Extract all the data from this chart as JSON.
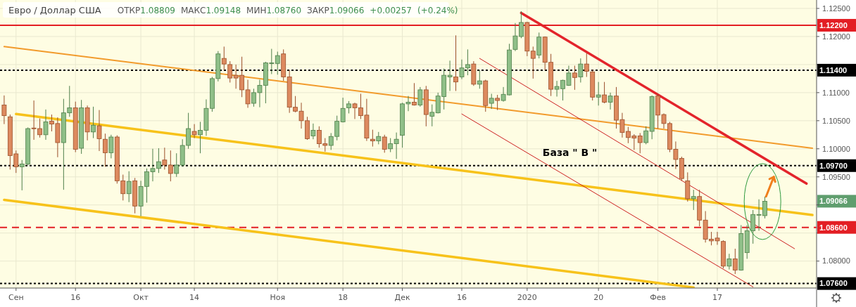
{
  "chart_data": {
    "type": "candlestick",
    "title": "Евро / Доллар США",
    "subtitle": "ОТКР1.08809 МАКС1.09148 МИН1.08760 ЗАКР1.09066 +0.00257 (+0.24%)",
    "categories": [
      null,
      null,
      "Сен",
      null,
      null,
      null,
      null,
      null,
      null,
      null,
      null,
      null,
      "16",
      null,
      null,
      null,
      null,
      null,
      null,
      null,
      null,
      null,
      null,
      "Окт",
      null,
      null,
      null,
      null,
      null,
      null,
      null,
      null,
      "14",
      null,
      null,
      null,
      null,
      null,
      null,
      null,
      null,
      null,
      null,
      null,
      null,
      null,
      "Ноя",
      null,
      null,
      null,
      null,
      null,
      null,
      null,
      null,
      null,
      null,
      "18",
      null,
      null,
      null,
      null,
      null,
      null,
      null,
      null,
      null,
      "Дек",
      null,
      null,
      null,
      null,
      null,
      null,
      null,
      null,
      null,
      "16",
      null,
      null,
      null,
      null,
      null,
      null,
      null,
      null,
      null,
      null,
      "2020",
      null,
      null,
      null,
      null,
      null,
      null,
      null,
      null,
      null,
      null,
      null,
      "20",
      null,
      null,
      null,
      null,
      null,
      null,
      null,
      null,
      null,
      "Фев",
      null,
      null,
      null,
      null,
      null,
      null,
      null,
      null,
      null,
      "17",
      null,
      null,
      null,
      null,
      null,
      null,
      null,
      null,
      null,
      null,
      null,
      null,
      null,
      null,
      null,
      null
    ],
    "colors": [
      "#dd8a5f",
      "#dd8a5f",
      "#dd8a5f",
      "#8fbf88",
      "#8fbf88",
      "#dd8a5f",
      "#dd8a5f",
      "#8fbf88",
      "#dd8a5f",
      "#dd8a5f",
      "#8fbf88",
      "#8fbf88",
      "#dd8a5f",
      "#8fbf88",
      "#dd8a5f",
      "#8fbf88",
      "#dd8a5f",
      "#dd8a5f",
      "#8fbf88",
      "#dd8a5f",
      "#dd8a5f",
      "#8fbf88",
      "#dd8a5f",
      "#8fbf88",
      "#8fbf88",
      "#8fbf88",
      "#8fbf88",
      "#dd8a5f",
      "#dd8a5f",
      "#8fbf88",
      "#8fbf88",
      "#8fbf88",
      "#dd8a5f",
      "#8fbf88",
      "#8fbf88",
      "#8fbf88",
      "#8fbf88",
      "#dd8a5f",
      "#dd8a5f",
      "#dd8a5f",
      "#dd8a5f",
      "#dd8a5f",
      "#8fbf88",
      "#8fbf88",
      "#8fbf88",
      "#8fbf88",
      "#8fbf88",
      "#dd8a5f",
      "#dd8a5f",
      "#dd8a5f",
      "#dd8a5f",
      "#dd8a5f",
      "#8fbf88",
      "#dd8a5f",
      "#dd8a5f",
      "#8fbf88",
      "#8fbf88",
      "#8fbf88",
      "#8fbf88",
      "#dd8a5f",
      "#dd8a5f",
      "#dd8a5f",
      "#dd8a5f",
      "#8fbf88",
      "#dd8a5f",
      "#8fbf88",
      "#8fbf88",
      "#8fbf88",
      "#8fbf88",
      "#dd8a5f",
      "#8fbf88",
      "#dd8a5f",
      "#8fbf88",
      "#8fbf88",
      "#8fbf88",
      "#8fbf88",
      "#dd8a5f",
      "#8fbf88",
      "#8fbf88",
      "#dd8a5f",
      "#8fbf88",
      "#dd8a5f",
      "#8fbf88",
      "#dd8a5f",
      "#8fbf88",
      "#8fbf88",
      "#8fbf88",
      "#8fbf88",
      "#dd8a5f",
      "#dd8a5f",
      "#8fbf88",
      "#dd8a5f",
      "#dd8a5f",
      "#8fbf88",
      "#8fbf88",
      "#8fbf88",
      "#dd8a5f",
      "#8fbf88",
      "#dd8a5f",
      "#dd8a5f",
      "#8fbf88",
      "#dd8a5f",
      "#8fbf88",
      "#dd8a5f",
      "#dd8a5f",
      "#dd8a5f",
      "#dd8a5f",
      "#dd8a5f",
      "#8fbf88",
      "#8fbf88",
      "#dd8a5f",
      "#dd8a5f",
      "#dd8a5f",
      "#dd8a5f",
      "#dd8a5f",
      "#dd8a5f",
      "#8fbf88",
      "#dd8a5f",
      "#dd8a5f",
      "#dd8a5f",
      "#dd8a5f",
      "#dd8a5f",
      "#8fbf88",
      "#dd8a5f",
      "#8fbf88",
      "#8fbf88",
      "#8fbf88",
      "#8fbf88",
      "#8fbf88",
      null,
      null,
      null,
      null,
      null,
      null,
      null,
      null
    ],
    "ohlc": [
      [
        1.1078,
        1.1095,
        1.1044,
        1.1059
      ],
      [
        1.1057,
        1.1061,
        1.0963,
        1.0988
      ],
      [
        1.0991,
        1.0997,
        1.0957,
        1.0968
      ],
      [
        1.0968,
        1.098,
        1.0926,
        1.0973
      ],
      [
        1.0973,
        1.1038,
        1.0971,
        1.1036
      ],
      [
        1.1037,
        1.1086,
        1.1016,
        1.1036
      ],
      [
        1.1036,
        1.1054,
        1.102,
        1.1025
      ],
      [
        1.1025,
        1.107,
        1.1016,
        1.1048
      ],
      [
        1.1049,
        1.1061,
        1.1031,
        1.1044
      ],
      [
        1.1045,
        1.1056,
        1.0985,
        1.1011
      ],
      [
        1.1011,
        1.1089,
        1.0927,
        1.1064
      ],
      [
        1.1064,
        1.1112,
        1.1057,
        1.1073
      ],
      [
        1.1073,
        1.1084,
        1.0994,
        1.0999
      ],
      [
        1.1001,
        1.1087,
        1.0991,
        1.1073
      ],
      [
        1.1073,
        1.1077,
        1.1015,
        1.103
      ],
      [
        1.103,
        1.1075,
        1.1019,
        1.1042
      ],
      [
        1.1041,
        1.1069,
        1.0996,
        1.1018
      ],
      [
        1.1017,
        1.1027,
        1.0968,
        1.0993
      ],
      [
        1.0993,
        1.1025,
        1.0983,
        1.1021
      ],
      [
        1.1021,
        1.1024,
        1.0938,
        1.0943
      ],
      [
        1.0943,
        1.0954,
        1.0908,
        1.092
      ],
      [
        1.092,
        1.096,
        1.0905,
        1.0942
      ],
      [
        1.0943,
        1.0948,
        1.0885,
        1.0898
      ],
      [
        1.0898,
        1.0943,
        1.088,
        1.0933
      ],
      [
        1.0933,
        1.0965,
        1.0904,
        1.0959
      ],
      [
        1.0959,
        1.1,
        1.0942,
        1.0965
      ],
      [
        1.0965,
        1.1001,
        1.0957,
        1.0977
      ],
      [
        1.098,
        1.1002,
        1.0963,
        1.0971
      ],
      [
        1.0971,
        1.0997,
        1.0942,
        1.0956
      ],
      [
        1.0956,
        1.0992,
        1.095,
        1.0971
      ],
      [
        1.0971,
        1.1017,
        1.0968,
        1.1006
      ],
      [
        1.1006,
        1.1064,
        1.1,
        1.1036
      ],
      [
        1.1031,
        1.1044,
        1.1019,
        1.1025
      ],
      [
        1.1025,
        1.1048,
        1.0992,
        1.1033
      ],
      [
        1.1033,
        1.1088,
        1.1023,
        1.1072
      ],
      [
        1.1072,
        1.1128,
        1.1066,
        1.1125
      ],
      [
        1.1125,
        1.1174,
        1.112,
        1.1169
      ],
      [
        1.1161,
        1.1182,
        1.114,
        1.1151
      ],
      [
        1.115,
        1.1156,
        1.1118,
        1.1126
      ],
      [
        1.1131,
        1.115,
        1.1107,
        1.1126
      ],
      [
        1.1131,
        1.1164,
        1.1092,
        1.1105
      ],
      [
        1.1105,
        1.1123,
        1.1073,
        1.108
      ],
      [
        1.1081,
        1.1107,
        1.1075,
        1.11
      ],
      [
        1.11,
        1.1123,
        1.1074,
        1.1113
      ],
      [
        1.1113,
        1.1155,
        1.1081,
        1.1153
      ],
      [
        1.1152,
        1.1178,
        1.1133,
        1.1153
      ],
      [
        1.1152,
        1.1173,
        1.1132,
        1.1166
      ],
      [
        1.1169,
        1.1177,
        1.1121,
        1.1128
      ],
      [
        1.1128,
        1.114,
        1.1064,
        1.1074
      ],
      [
        1.1074,
        1.1094,
        1.1065,
        1.1067
      ],
      [
        1.1067,
        1.1082,
        1.1036,
        1.105
      ],
      [
        1.105,
        1.1057,
        1.1016,
        1.1018
      ],
      [
        1.1023,
        1.1045,
        1.1017,
        1.1033
      ],
      [
        1.1033,
        1.104,
        1.1002,
        1.1009
      ],
      [
        1.1009,
        1.1019,
        1.0995,
        1.1006
      ],
      [
        1.1006,
        1.1028,
        1.0998,
        1.1022
      ],
      [
        1.1022,
        1.1059,
        1.1015,
        1.1049
      ],
      [
        1.1048,
        1.1091,
        1.1047,
        1.1072
      ],
      [
        1.1073,
        1.1085,
        1.1063,
        1.108
      ],
      [
        1.108,
        1.1082,
        1.1053,
        1.1073
      ],
      [
        1.1073,
        1.1098,
        1.1053,
        1.1059
      ],
      [
        1.106,
        1.1089,
        1.1014,
        1.1019
      ],
      [
        1.1017,
        1.1034,
        1.1004,
        1.1014
      ],
      [
        1.1014,
        1.103,
        1.1008,
        1.1022
      ],
      [
        1.1021,
        1.1025,
        1.0993,
        1.0999
      ],
      [
        1.1,
        1.1019,
        1.0994,
        1.1009
      ],
      [
        1.1009,
        1.1029,
        1.0982,
        1.1017
      ],
      [
        1.1024,
        1.1082,
        1.1002,
        1.108
      ],
      [
        1.108,
        1.1094,
        1.1067,
        1.1083
      ],
      [
        1.1083,
        1.1117,
        1.1077,
        1.1078
      ],
      [
        1.1078,
        1.111,
        1.1075,
        1.1105
      ],
      [
        1.1105,
        1.1112,
        1.104,
        1.1061
      ],
      [
        1.1058,
        1.1079,
        1.104,
        1.1065
      ],
      [
        1.1064,
        1.11,
        1.1063,
        1.1094
      ],
      [
        1.1093,
        1.1143,
        1.107,
        1.1131
      ],
      [
        1.1128,
        1.1157,
        1.1103,
        1.1131
      ],
      [
        1.1128,
        1.1202,
        1.1103,
        1.1119
      ],
      [
        1.1128,
        1.1159,
        1.1124,
        1.1144
      ],
      [
        1.1144,
        1.1177,
        1.1131,
        1.115
      ],
      [
        1.1151,
        1.1156,
        1.1112,
        1.1115
      ],
      [
        1.1115,
        1.114,
        1.1107,
        1.1121
      ],
      [
        1.1121,
        1.1123,
        1.1066,
        1.1077
      ],
      [
        1.1081,
        1.1098,
        1.1071,
        1.109
      ],
      [
        1.109,
        1.1096,
        1.1069,
        1.1086
      ],
      [
        1.1086,
        1.111,
        1.1084,
        1.1097
      ],
      [
        1.1096,
        1.1187,
        1.1095,
        1.1176
      ],
      [
        1.1177,
        1.1224,
        1.1174,
        1.1201
      ],
      [
        1.12,
        1.1245,
        1.1197,
        1.1225
      ],
      [
        1.1225,
        1.1226,
        1.1165,
        1.1174
      ],
      [
        1.1174,
        1.1182,
        1.1125,
        1.1161
      ],
      [
        1.1167,
        1.1207,
        1.1161,
        1.1199
      ],
      [
        1.1199,
        1.12,
        1.114,
        1.1154
      ],
      [
        1.1154,
        1.1169,
        1.1094,
        1.1106
      ],
      [
        1.1106,
        1.1121,
        1.1093,
        1.1111
      ],
      [
        1.1107,
        1.1123,
        1.1086,
        1.1122
      ],
      [
        1.1113,
        1.1148,
        1.1112,
        1.1135
      ],
      [
        1.1135,
        1.1148,
        1.1105,
        1.1127
      ],
      [
        1.1128,
        1.1161,
        1.1118,
        1.1151
      ],
      [
        1.1151,
        1.117,
        1.1128,
        1.1138
      ],
      [
        1.1137,
        1.1141,
        1.1086,
        1.1092
      ],
      [
        1.1092,
        1.1119,
        1.1077,
        1.1096
      ],
      [
        1.1096,
        1.1119,
        1.1081,
        1.1083
      ],
      [
        1.1083,
        1.11,
        1.107,
        1.1094
      ],
      [
        1.1094,
        1.111,
        1.1036,
        1.1051
      ],
      [
        1.1052,
        1.1064,
        1.102,
        1.1029
      ],
      [
        1.1031,
        1.1039,
        1.101,
        1.102
      ],
      [
        1.1023,
        1.1026,
        1.0998,
        1.1019
      ],
      [
        1.1023,
        1.1028,
        1.0992,
        1.1011
      ],
      [
        1.1011,
        1.104,
        1.1008,
        1.1032
      ],
      [
        1.1031,
        1.1095,
        1.1017,
        1.1093
      ],
      [
        1.1094,
        1.1098,
        1.1036,
        1.106
      ],
      [
        1.1061,
        1.1063,
        1.1036,
        1.1045
      ],
      [
        1.1045,
        1.1048,
        1.0994,
        1.0999
      ],
      [
        1.0999,
        1.1013,
        1.0964,
        1.0981
      ],
      [
        1.0983,
        1.0986,
        1.0943,
        1.0947
      ],
      [
        1.0943,
        1.0958,
        1.0906,
        1.0911
      ],
      [
        1.0911,
        1.0927,
        1.0891,
        1.0915
      ],
      [
        1.0915,
        1.0927,
        1.0862,
        1.0873
      ],
      [
        1.0873,
        1.0889,
        1.0833,
        1.0839
      ],
      [
        1.0839,
        1.0852,
        1.0828,
        1.0836
      ],
      [
        1.0841,
        1.0852,
        1.0829,
        1.0836
      ],
      [
        1.0835,
        1.0837,
        1.0787,
        1.0791
      ],
      [
        1.0791,
        1.0813,
        1.0785,
        1.0804
      ],
      [
        1.0804,
        1.0822,
        1.0777,
        1.0784
      ],
      [
        1.0784,
        1.0864,
        1.0783,
        1.0849
      ],
      [
        1.0815,
        1.0864,
        1.0804,
        1.0854
      ],
      [
        1.0854,
        1.0891,
        1.0831,
        1.0883
      ],
      [
        1.0882,
        1.091,
        1.0854,
        1.0883
      ],
      [
        1.08809,
        1.09148,
        1.0876,
        1.09066
      ],
      null,
      null,
      null,
      null,
      null,
      null,
      null,
      null
    ],
    "series": [
      {
        "type": "line",
        "color": "#f29b2c",
        "values": [
          1.1182,
          null,
          null,
          null,
          null,
          null,
          null,
          null,
          null,
          null,
          null,
          null,
          null,
          null,
          null,
          null,
          null,
          null,
          null,
          null,
          null,
          null,
          null,
          null,
          null,
          null,
          null,
          null,
          null,
          null,
          null,
          null,
          null,
          null,
          null,
          null,
          null,
          null,
          null,
          null,
          null,
          null,
          null,
          null,
          null,
          null,
          null,
          null,
          null,
          null,
          null,
          null,
          null,
          null,
          null,
          null,
          null,
          null,
          null,
          null,
          null,
          null,
          null,
          null,
          null,
          null,
          null,
          null,
          null,
          null,
          null,
          null,
          null,
          null,
          null,
          null,
          null,
          null,
          null,
          null,
          null,
          null,
          null,
          null,
          null,
          null,
          null,
          null,
          null,
          null,
          null,
          null,
          null,
          null,
          null,
          null,
          null,
          null,
          null,
          null,
          null,
          null,
          null,
          null,
          null,
          null,
          null,
          null,
          null,
          null,
          null,
          null,
          null,
          null,
          null,
          null,
          null,
          null,
          null,
          null,
          null,
          null,
          null,
          null,
          null,
          null,
          null,
          null,
          null,
          null,
          null,
          null,
          null,
          null,
          null,
          null,
          1.1001
        ]
      },
      {
        "type": "line",
        "color": "#f7c21a",
        "values": [
          null,
          null,
          1.1062,
          null,
          null,
          null,
          null,
          null,
          null,
          null,
          null,
          null,
          null,
          null,
          null,
          null,
          null,
          null,
          null,
          null,
          null,
          null,
          null,
          null,
          null,
          null,
          null,
          null,
          null,
          null,
          null,
          null,
          null,
          null,
          null,
          null,
          null,
          null,
          null,
          null,
          null,
          null,
          null,
          null,
          null,
          null,
          null,
          null,
          null,
          null,
          null,
          null,
          null,
          null,
          null,
          null,
          null,
          null,
          null,
          null,
          null,
          null,
          null,
          null,
          null,
          null,
          null,
          null,
          null,
          null,
          null,
          null,
          null,
          null,
          null,
          null,
          null,
          null,
          null,
          null,
          null,
          null,
          null,
          null,
          null,
          null,
          null,
          null,
          null,
          null,
          null,
          null,
          null,
          null,
          null,
          null,
          null,
          null,
          null,
          null,
          null,
          null,
          null,
          null,
          null,
          null,
          null,
          null,
          null,
          null,
          null,
          null,
          null,
          null,
          null,
          null,
          null,
          null,
          null,
          null,
          null,
          null,
          null,
          null,
          null,
          null,
          null,
          null,
          null,
          null,
          null,
          null,
          null,
          null,
          null,
          null,
          1.0882
        ]
      },
      {
        "type": "line",
        "color": "#f7c21a",
        "values": [
          1.0909,
          null,
          null,
          null,
          null,
          null,
          null,
          null,
          null,
          null,
          null,
          null,
          null,
          null,
          null,
          null,
          null,
          null,
          null,
          null,
          null,
          null,
          null,
          null,
          null,
          null,
          null,
          null,
          null,
          null,
          null,
          null,
          null,
          null,
          null,
          null,
          null,
          null,
          null,
          null,
          null,
          null,
          null,
          null,
          null,
          null,
          null,
          null,
          null,
          null,
          null,
          null,
          null,
          null,
          null,
          null,
          null,
          null,
          null,
          null,
          null,
          null,
          null,
          null,
          null,
          null,
          null,
          null,
          null,
          null,
          null,
          null,
          null,
          null,
          null,
          null,
          null,
          null,
          null,
          null,
          null,
          null,
          null,
          null,
          null,
          null,
          null,
          null,
          null,
          null,
          null,
          null,
          null,
          null,
          null,
          null,
          null,
          null,
          null,
          null,
          null,
          null,
          null,
          null,
          null,
          null,
          null,
          null,
          null,
          null,
          null,
          null,
          null,
          null,
          null,
          null,
          1.0753,
          null,
          null,
          null,
          null,
          null,
          null,
          null,
          null,
          null,
          null,
          null,
          null,
          null,
          null,
          null,
          null,
          null,
          null,
          null,
          null
        ]
      },
      {
        "type": "line",
        "color": "#e3242b",
        "values": [
          null,
          null,
          null,
          null,
          null,
          null,
          null,
          null,
          null,
          null,
          null,
          null,
          null,
          null,
          null,
          null,
          null,
          null,
          null,
          null,
          null,
          null,
          null,
          null,
          null,
          null,
          null,
          null,
          null,
          null,
          null,
          null,
          null,
          null,
          null,
          null,
          null,
          null,
          null,
          null,
          null,
          null,
          null,
          null,
          null,
          null,
          null,
          null,
          null,
          null,
          null,
          null,
          null,
          null,
          null,
          null,
          null,
          null,
          null,
          null,
          null,
          null,
          null,
          null,
          null,
          null,
          null,
          null,
          null,
          null,
          null,
          null,
          null,
          null,
          null,
          null,
          null,
          null,
          null,
          null,
          null,
          null,
          null,
          null,
          null,
          null,
          null,
          1.1242,
          null,
          null,
          null,
          null,
          null,
          null,
          null,
          null,
          null,
          null,
          null,
          null,
          null,
          null,
          null,
          null,
          null,
          null,
          null,
          null,
          null,
          null,
          null,
          null,
          null,
          null,
          null,
          null,
          null,
          null,
          null,
          null,
          null,
          null,
          null,
          null,
          null,
          null,
          null,
          null,
          null,
          null,
          null,
          null,
          null,
          null,
          null,
          1.0938,
          null
        ]
      },
      {
        "type": "line",
        "color": "#cc2020",
        "values": [
          null,
          null,
          null,
          null,
          null,
          null,
          null,
          null,
          null,
          null,
          null,
          null,
          null,
          null,
          null,
          null,
          null,
          null,
          null,
          null,
          null,
          null,
          null,
          null,
          null,
          null,
          null,
          null,
          null,
          null,
          null,
          null,
          null,
          null,
          null,
          null,
          null,
          null,
          null,
          null,
          null,
          null,
          null,
          null,
          null,
          null,
          null,
          null,
          null,
          null,
          null,
          null,
          null,
          null,
          null,
          null,
          null,
          null,
          null,
          null,
          null,
          null,
          null,
          null,
          null,
          null,
          null,
          null,
          null,
          null,
          null,
          null,
          null,
          null,
          null,
          null,
          null,
          null,
          null,
          null,
          1.1161,
          null,
          null,
          null,
          null,
          null,
          null,
          null,
          null,
          null,
          null,
          null,
          null,
          null,
          null,
          null,
          null,
          null,
          null,
          null,
          null,
          null,
          null,
          null,
          null,
          null,
          null,
          null,
          null,
          null,
          null,
          null,
          null,
          null,
          null,
          null,
          null,
          null,
          null,
          null,
          null,
          null,
          null,
          null,
          null,
          null,
          null,
          null,
          null,
          null,
          null,
          null,
          null,
          1.0822,
          null,
          null,
          null
        ]
      },
      {
        "type": "line",
        "color": "#cc2020",
        "values": [
          null,
          null,
          null,
          null,
          null,
          null,
          null,
          null,
          null,
          null,
          null,
          null,
          null,
          null,
          null,
          null,
          null,
          null,
          null,
          null,
          null,
          null,
          null,
          null,
          null,
          null,
          null,
          null,
          null,
          null,
          null,
          null,
          null,
          null,
          null,
          null,
          null,
          null,
          null,
          null,
          null,
          null,
          null,
          null,
          null,
          null,
          null,
          null,
          null,
          null,
          null,
          null,
          null,
          null,
          null,
          null,
          null,
          null,
          null,
          null,
          null,
          null,
          null,
          null,
          null,
          null,
          null,
          null,
          null,
          null,
          null,
          null,
          null,
          null,
          null,
          null,
          null,
          1.1062,
          null,
          null,
          null,
          null,
          null,
          null,
          null,
          null,
          null,
          null,
          null,
          null,
          null,
          null,
          null,
          null,
          null,
          null,
          null,
          null,
          null,
          null,
          null,
          null,
          null,
          null,
          null,
          null,
          null,
          null,
          null,
          null,
          null,
          null,
          null,
          null,
          null,
          null,
          null,
          null,
          null,
          null,
          null,
          null,
          null,
          null,
          null,
          null,
          1.0754,
          null,
          null,
          null,
          null,
          null,
          null,
          null,
          null,
          null,
          null
        ]
      }
    ],
    "ylim": [
      1.0752,
      1.1265
    ],
    "yticks": [
      {
        "value": 1.08,
        "label": "1.08000"
      },
      {
        "value": 1.085,
        "label": null
      },
      {
        "value": 1.09,
        "label": null
      },
      {
        "value": 1.095,
        "label": "1.09500"
      },
      {
        "value": 1.1,
        "label": "1.10000"
      },
      {
        "value": 1.105,
        "label": "1.10500"
      },
      {
        "value": 1.11,
        "label": "1.11000"
      },
      {
        "value": 1.115,
        "label": null
      },
      {
        "value": 1.12,
        "label": "1.12000"
      },
      {
        "value": 1.125,
        "label": "1.12500"
      }
    ],
    "ref_lines": [
      {
        "axis": "y",
        "value": 1.122,
        "label": "1.12200",
        "color": "#e31e24",
        "line_style": "solid"
      },
      {
        "axis": "y",
        "value": 1.114,
        "label": "1.11400",
        "color": "#000000",
        "line_style": "dotted"
      },
      {
        "axis": "y",
        "value": 1.097,
        "label": "1.09700",
        "color": "#000000",
        "line_style": "dotted"
      },
      {
        "axis": "y",
        "value": 1.086,
        "label": "1.08600",
        "color": "#e31e24",
        "line_style": "dashed"
      },
      {
        "axis": "y",
        "value": 1.076,
        "label": "1.07600",
        "color": "#000000",
        "line_style": "dotted"
      }
    ],
    "annotations": [
      "База \" В \"",
      "1.09066"
    ],
    "grid": true
  }
}
